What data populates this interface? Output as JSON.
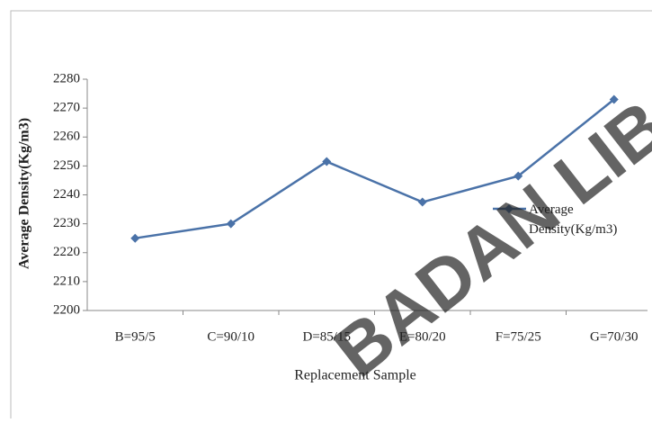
{
  "chart_data": {
    "type": "line",
    "y_label": "Average Density(Kg/m3)",
    "x_label": "Replacement Sample",
    "categories": [
      "B=95/5",
      "C=90/10",
      "D=85/15",
      "E=80/20",
      "F=75/25",
      "G=70/30"
    ],
    "series": [
      {
        "name": "Average Density(Kg/m3)",
        "color": "#4a72a8",
        "values": [
          2225,
          2230,
          2251.5,
          2237.5,
          2246.5,
          2273
        ]
      }
    ],
    "ylim": [
      2200,
      2280
    ],
    "yticks": [
      2200,
      2210,
      2220,
      2230,
      2240,
      2250,
      2260,
      2270,
      2280
    ],
    "legend": "right",
    "watermark": "BADAN LIB"
  }
}
